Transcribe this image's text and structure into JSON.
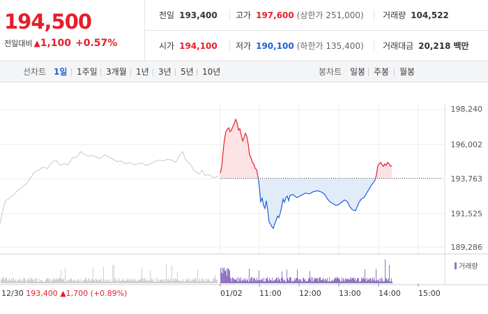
{
  "price": {
    "current": "194,500",
    "change_label": "전일대비",
    "change_arrow": "▲",
    "change_amount": "1,100",
    "change_pct": "+0.57%"
  },
  "info": {
    "prev_close_label": "전일",
    "prev_close": "193,400",
    "high_label": "고가",
    "high": "197,600",
    "upper_limit": "(상한가 251,000)",
    "volume_label": "거래량",
    "volume": "104,522",
    "open_label": "시가",
    "open": "194,100",
    "low_label": "저가",
    "low": "190,100",
    "lower_limit": "(하한가 135,400)",
    "trade_value_label": "거래대금",
    "trade_value": "20,218",
    "trade_value_unit": "백만"
  },
  "tabs": {
    "line_label": "선차트",
    "line_items": [
      "1일",
      "1주일",
      "3개월",
      "1년",
      "3년",
      "5년",
      "10년"
    ],
    "line_active": "1일",
    "candle_label": "봉차트",
    "candle_items": [
      "일봉",
      "주봉",
      "월봉"
    ]
  },
  "chart_data": {
    "type": "line",
    "y_ticks": [
      "198,240",
      "196,002",
      "193,763",
      "191,525",
      "189,286"
    ],
    "ylim": [
      189286,
      198240
    ],
    "baseline": 193763,
    "x_ticks": [
      "01/02",
      "11:00",
      "12:00",
      "13:00",
      "14:00",
      "15:00"
    ],
    "prev_day": {
      "date": "12/30",
      "close": "193,400",
      "arrow": "▲",
      "change": "1,700",
      "change_pct": "(+0.89%)",
      "series": [
        [
          0,
          190800
        ],
        [
          4,
          191700
        ],
        [
          8,
          192300
        ],
        [
          14,
          192500
        ],
        [
          20,
          192700
        ],
        [
          26,
          193000
        ],
        [
          32,
          193200
        ],
        [
          38,
          193400
        ],
        [
          44,
          193800
        ],
        [
          50,
          194200
        ],
        [
          56,
          194300
        ],
        [
          62,
          194500
        ],
        [
          68,
          194400
        ],
        [
          74,
          194800
        ],
        [
          80,
          194950
        ],
        [
          86,
          194600
        ],
        [
          92,
          194700
        ],
        [
          98,
          194650
        ],
        [
          104,
          195100
        ],
        [
          110,
          195150
        ],
        [
          116,
          195500
        ],
        [
          120,
          195350
        ],
        [
          126,
          195200
        ],
        [
          132,
          195250
        ],
        [
          138,
          195150
        ],
        [
          144,
          195050
        ],
        [
          150,
          195300
        ],
        [
          156,
          195150
        ],
        [
          162,
          195000
        ],
        [
          168,
          194850
        ],
        [
          174,
          194900
        ],
        [
          180,
          194700
        ],
        [
          186,
          194800
        ],
        [
          192,
          194650
        ],
        [
          198,
          194700
        ],
        [
          204,
          194750
        ],
        [
          210,
          194600
        ],
        [
          216,
          194700
        ],
        [
          222,
          194850
        ],
        [
          228,
          194950
        ],
        [
          234,
          194900
        ],
        [
          240,
          195000
        ],
        [
          246,
          194950
        ],
        [
          252,
          194800
        ],
        [
          258,
          195300
        ],
        [
          262,
          195500
        ],
        [
          266,
          195000
        ],
        [
          270,
          194800
        ],
        [
          274,
          194600
        ],
        [
          278,
          194300
        ],
        [
          282,
          194150
        ],
        [
          286,
          194050
        ],
        [
          290,
          194300
        ],
        [
          294,
          193950
        ],
        [
          298,
          194000
        ],
        [
          302,
          193950
        ],
        [
          306,
          193800
        ],
        [
          310,
          193850
        ],
        [
          313,
          193900
        ]
      ]
    },
    "today_series": [
      [
        316,
        194100
      ],
      [
        318,
        194500
      ],
      [
        320,
        195500
      ],
      [
        322,
        196300
      ],
      [
        324,
        196800
      ],
      [
        326,
        196950
      ],
      [
        328,
        197050
      ],
      [
        330,
        196800
      ],
      [
        332,
        196900
      ],
      [
        334,
        197150
      ],
      [
        336,
        197300
      ],
      [
        338,
        197600
      ],
      [
        340,
        197400
      ],
      [
        342,
        196900
      ],
      [
        344,
        197000
      ],
      [
        346,
        196600
      ],
      [
        348,
        196200
      ],
      [
        350,
        196400
      ],
      [
        352,
        196700
      ],
      [
        354,
        196500
      ],
      [
        356,
        196000
      ],
      [
        358,
        195300
      ],
      [
        360,
        195100
      ],
      [
        362,
        194800
      ],
      [
        364,
        194700
      ],
      [
        366,
        194400
      ],
      [
        368,
        194350
      ],
      [
        370,
        193900
      ],
      [
        372,
        193200
      ],
      [
        374,
        192200
      ],
      [
        376,
        192500
      ],
      [
        378,
        192000
      ],
      [
        380,
        191800
      ],
      [
        382,
        192300
      ],
      [
        384,
        191700
      ],
      [
        386,
        190900
      ],
      [
        388,
        190800
      ],
      [
        390,
        190600
      ],
      [
        392,
        190500
      ],
      [
        394,
        190800
      ],
      [
        396,
        191000
      ],
      [
        398,
        191300
      ],
      [
        400,
        191200
      ],
      [
        402,
        191500
      ],
      [
        404,
        191900
      ],
      [
        406,
        192400
      ],
      [
        408,
        192200
      ],
      [
        410,
        192500
      ],
      [
        412,
        192600
      ],
      [
        414,
        192300
      ],
      [
        416,
        192650
      ],
      [
        420,
        192700
      ],
      [
        426,
        192500
      ],
      [
        432,
        192650
      ],
      [
        438,
        192800
      ],
      [
        444,
        192750
      ],
      [
        450,
        192900
      ],
      [
        456,
        192950
      ],
      [
        462,
        192850
      ],
      [
        466,
        192700
      ],
      [
        470,
        192400
      ],
      [
        474,
        192200
      ],
      [
        478,
        192100
      ],
      [
        482,
        192000
      ],
      [
        486,
        192050
      ],
      [
        490,
        192200
      ],
      [
        494,
        192350
      ],
      [
        498,
        192250
      ],
      [
        502,
        191900
      ],
      [
        506,
        191700
      ],
      [
        510,
        191650
      ],
      [
        514,
        192100
      ],
      [
        518,
        192400
      ],
      [
        522,
        192500
      ],
      [
        526,
        192800
      ],
      [
        530,
        193100
      ],
      [
        534,
        193400
      ],
      [
        536,
        193500
      ],
      [
        538,
        193650
      ],
      [
        540,
        194000
      ],
      [
        542,
        194600
      ],
      [
        544,
        194700
      ],
      [
        546,
        194800
      ],
      [
        548,
        194650
      ],
      [
        550,
        194550
      ],
      [
        552,
        194700
      ],
      [
        554,
        194600
      ],
      [
        556,
        194800
      ],
      [
        558,
        194700
      ],
      [
        560,
        194550
      ],
      [
        562,
        194600
      ]
    ],
    "volume_label": "거래량"
  }
}
